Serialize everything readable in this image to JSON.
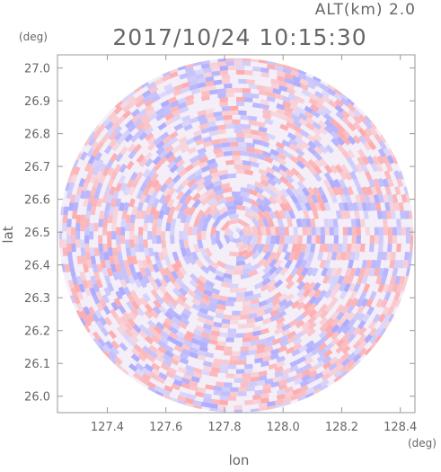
{
  "header": {
    "altitude": "ALT(km) 2.0",
    "timestamp": "2017/10/24 10:15:30"
  },
  "chart_data": {
    "type": "heatmap",
    "title": "2017/10/24 10:15:30",
    "subtitle": "ALT(km) 2.0",
    "xlabel": "lon",
    "ylabel": "lat",
    "x_unit": "(deg)",
    "y_unit": "(deg)",
    "xlim": [
      127.23,
      128.45
    ],
    "ylim": [
      25.95,
      27.04
    ],
    "x_ticks": [
      "127.4",
      "127.6",
      "127.8",
      "128.0",
      "128.2",
      "128.4"
    ],
    "x_tick_values": [
      127.4,
      127.6,
      127.8,
      128.0,
      128.2,
      128.4
    ],
    "y_ticks": [
      "26.0",
      "26.1",
      "26.2",
      "26.3",
      "26.4",
      "26.5",
      "26.6",
      "26.7",
      "26.8",
      "26.9",
      "27.0"
    ],
    "y_tick_values": [
      26.0,
      26.1,
      26.2,
      26.3,
      26.4,
      26.5,
      26.6,
      26.7,
      26.8,
      26.9,
      27.0
    ],
    "radar_center": {
      "lon": 127.84,
      "lat": 26.49
    },
    "radar_range_lat_deg": 0.54,
    "colors": {
      "positive": "#ff9a9a",
      "negative": "#9a9aff",
      "frame": "#999999"
    }
  }
}
